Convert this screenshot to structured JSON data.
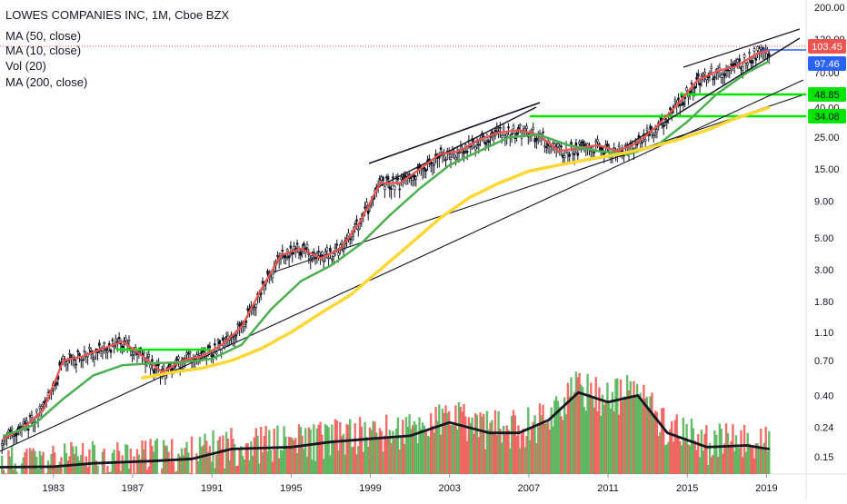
{
  "legend": {
    "title": "LOWES COMPANIES INC, 1M, Cboe BZX",
    "lines": [
      "MA (50, close)",
      "MA (10, close)",
      "Vol (20)",
      "MA (200, close)"
    ]
  },
  "colors": {
    "candle": "#131722",
    "ma10": "#ef5350",
    "ma50": "#4caf50",
    "ma200": "#fdd835",
    "vol_up": "#4caf50",
    "vol_down": "#ef5350",
    "vol_ma": "#131722",
    "support": "#00e600",
    "last_price": "#ef5350",
    "ma_tag": "#2962ff",
    "trend": "#131722"
  },
  "price_tags": [
    {
      "label": "103.45",
      "value": 103.45,
      "bg": "#ef5350",
      "fg": "#ffffff"
    },
    {
      "label": "97.46",
      "value": 97.46,
      "bg": "#2962ff",
      "fg": "#ffffff"
    },
    {
      "label": "48.85",
      "value": 48.85,
      "bg": "#00e600",
      "fg": "#131722"
    },
    {
      "label": "34.08",
      "value": 34.08,
      "bg": "#00e600",
      "fg": "#131722"
    }
  ],
  "chart_data": {
    "type": "line",
    "title": "LOWES COMPANIES INC, 1M, Cboe BZX",
    "y_scale": "log",
    "ylim": [
      0.12,
      250
    ],
    "xlim": [
      1980.3,
      2021
    ],
    "x_ticks": [
      "1983",
      "1987",
      "1991",
      "1995",
      "1999",
      "2003",
      "2007",
      "2011",
      "2015",
      "2019"
    ],
    "y_ticks": [
      "200.00",
      "120.00",
      "70.00",
      "40.00",
      "25.00",
      "15.00",
      "9.00",
      "5.00",
      "3.00",
      "1.80",
      "1.10",
      "0.70",
      "0.40",
      "0.24",
      "0.15"
    ],
    "series": [
      {
        "name": "MA (10, close)",
        "x": [
          1980.5,
          1981.5,
          1982.5,
          1983.5,
          1984.5,
          1985.5,
          1986.5,
          1987.5,
          1988.5,
          1989.5,
          1990.5,
          1991.5,
          1992.5,
          1993.5,
          1994.5,
          1995.5,
          1996.5,
          1997.5,
          1998.5,
          1999.5,
          2000.5,
          2001.5,
          2002.5,
          2003.5,
          2004.5,
          2005.5,
          2006.5,
          2007.5,
          2008.5,
          2009.5,
          2010.5,
          2011.5,
          2012.5,
          2013.5,
          2014.5,
          2015.5,
          2016.5,
          2017.5,
          2018.5,
          2019.1
        ],
        "y": [
          0.2,
          0.24,
          0.32,
          0.7,
          0.75,
          0.85,
          0.95,
          0.75,
          0.58,
          0.7,
          0.75,
          0.9,
          1.2,
          2.2,
          3.8,
          4.2,
          3.6,
          4.2,
          6.5,
          12,
          12,
          15,
          19,
          20,
          24,
          27,
          28,
          26,
          20,
          21,
          22,
          20,
          23,
          30,
          42,
          62,
          72,
          78,
          95,
          100
        ]
      },
      {
        "name": "MA (50, close)",
        "x": [
          1980.5,
          1982,
          1983.5,
          1985,
          1986.5,
          1988,
          1989.5,
          1991,
          1992.5,
          1994,
          1995.5,
          1997,
          1998.5,
          2000,
          2001.5,
          2003,
          2004.5,
          2006,
          2007.5,
          2009,
          2010.5,
          2012,
          2013.5,
          2015,
          2016.5,
          2018,
          2019.1
        ],
        "y": [
          0.21,
          0.25,
          0.38,
          0.55,
          0.65,
          0.67,
          0.68,
          0.72,
          0.9,
          1.6,
          2.5,
          3.2,
          4.5,
          7.2,
          11,
          16,
          20,
          25,
          26,
          22,
          20,
          19,
          22,
          32,
          50,
          70,
          84
        ]
      },
      {
        "name": "MA (200, close)",
        "x": [
          1987.5,
          1989,
          1990.5,
          1992,
          1993.5,
          1995,
          1996.5,
          1998,
          1999.5,
          2001,
          2002.5,
          2004,
          2005.5,
          2007,
          2008.5,
          2010,
          2011.5,
          2013,
          2014.5,
          2016,
          2017.5,
          2019.1
        ],
        "y": [
          0.53,
          0.58,
          0.62,
          0.7,
          0.85,
          1.1,
          1.5,
          2.0,
          3.0,
          4.5,
          6.8,
          9.5,
          12,
          14.5,
          16,
          17.5,
          19,
          21,
          24,
          28,
          34,
          40
        ]
      },
      {
        "name": "Vol (20)",
        "x": [
          1980.3,
          1983,
          1985,
          1988,
          1990,
          1992,
          1995,
          1997,
          1999,
          2001,
          2003,
          2005,
          2006.5,
          2008,
          2009.5,
          2011,
          2012.5,
          2014,
          2016,
          2018,
          2019.1
        ],
        "y": [
          0.127,
          0.128,
          0.135,
          0.14,
          0.145,
          0.17,
          0.175,
          0.19,
          0.2,
          0.21,
          0.26,
          0.22,
          0.22,
          0.27,
          0.42,
          0.36,
          0.4,
          0.22,
          0.175,
          0.18,
          0.17
        ]
      }
    ],
    "annotations": [
      "103.45",
      "97.46",
      "48.85",
      "34.08"
    ]
  }
}
